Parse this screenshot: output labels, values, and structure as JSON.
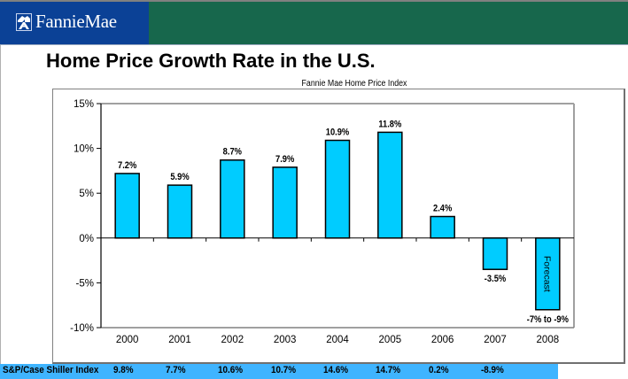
{
  "header": {
    "brand": "FannieMae",
    "logo_icon": "fannie-mae-house-logo",
    "colors": {
      "left_banner": "#0b4196",
      "right_banner": "#17674c"
    }
  },
  "slide": {
    "title": "Home Price Growth Rate in the U.S."
  },
  "chart_data": {
    "type": "bar",
    "title": "Fannie Mae Home Price Index",
    "xlabel": "",
    "ylabel": "",
    "categories": [
      "2000",
      "2001",
      "2002",
      "2003",
      "2004",
      "2005",
      "2006",
      "2007",
      "2008"
    ],
    "values": [
      7.2,
      5.9,
      8.7,
      7.9,
      10.9,
      11.8,
      2.4,
      -3.5,
      -8.0
    ],
    "data_labels": [
      "7.2%",
      "5.9%",
      "8.7%",
      "7.9%",
      "10.9%",
      "11.8%",
      "2.4%",
      "-3.5%",
      "-7% to -9%"
    ],
    "forecast": {
      "category": "2008",
      "label": "Forecast",
      "range": [
        -7,
        -9
      ]
    },
    "ylim": [
      -10,
      15
    ],
    "yticks": [
      15,
      10,
      5,
      0,
      -5,
      -10
    ],
    "ytick_labels": [
      "15%",
      "10%",
      "5%",
      "0%",
      "-5%",
      "-10%"
    ],
    "grid": false,
    "legend": "none",
    "bar_color": "#00ccff",
    "bar_edge_color": "#000000"
  },
  "shiller_row": {
    "label": "S&P/Case Shiller Index",
    "values": [
      "9.8%",
      "7.7%",
      "10.6%",
      "10.7%",
      "14.6%",
      "14.7%",
      "0.2%",
      "-8.9%"
    ],
    "color": "#3fb4ff"
  }
}
